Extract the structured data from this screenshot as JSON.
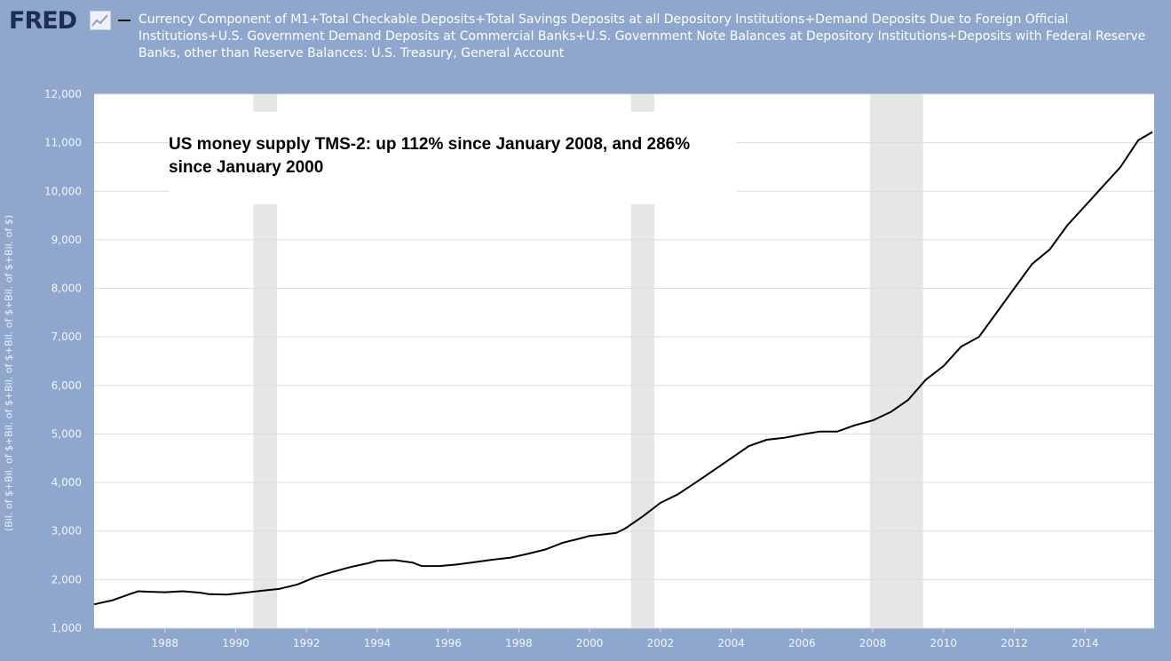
{
  "header": {
    "logo_text": "FRED",
    "series_title": "Currency Component of M1+Total Checkable Deposits+Total Savings Deposits at all Depository Institutions+Demand Deposits Due to Foreign Official Institutions+U.S. Government Demand Deposits at Commercial Banks+U.S. Government Note Balances at Depository Institutions+Deposits with Federal Reserve Banks, other than Reserve Balances: U.S. Treasury, General Account"
  },
  "annotation": "US money supply TMS-2: up 112% since January 2008, and 286% since January 2000",
  "colors": {
    "background": "#8fa7cc",
    "plot": "#ffffff",
    "line": "#000000",
    "recession": "#e6e6e6"
  },
  "chart_data": {
    "type": "line",
    "title": "",
    "ylabel": "(Bil. of $+Bil. of $+Bil. of $+Bil. of $+Bil. of $+Bil. of $+Bil. of $)",
    "xlabel": "",
    "xlim": [
      1986.0,
      2015.95
    ],
    "ylim": [
      1000,
      12000
    ],
    "x_ticks": [
      "1988",
      "1990",
      "1992",
      "1994",
      "1996",
      "1998",
      "2000",
      "2002",
      "2004",
      "2006",
      "2008",
      "2010",
      "2012",
      "2014"
    ],
    "y_ticks": [
      "1,000",
      "2,000",
      "3,000",
      "4,000",
      "5,000",
      "6,000",
      "7,000",
      "8,000",
      "9,000",
      "10,000",
      "11,000",
      "12,000"
    ],
    "recessions": [
      [
        1990.5,
        1991.17
      ],
      [
        2001.17,
        2001.83
      ],
      [
        2007.92,
        2009.42
      ]
    ],
    "grid": true,
    "series": [
      {
        "name": "",
        "x": [
          1986.0,
          1986.5,
          1987.0,
          1987.25,
          1987.5,
          1988.0,
          1988.5,
          1989.0,
          1989.25,
          1989.75,
          1990.25,
          1990.75,
          1991.25,
          1991.75,
          1992.25,
          1992.75,
          1993.25,
          1993.75,
          1994.0,
          1994.5,
          1995.0,
          1995.25,
          1995.75,
          1996.25,
          1996.75,
          1997.25,
          1997.75,
          1998.25,
          1998.75,
          1999.25,
          1999.75,
          2000.0,
          2000.5,
          2000.75,
          2001.0,
          2001.5,
          2002.0,
          2002.5,
          2003.0,
          2003.5,
          2004.0,
          2004.5,
          2005.0,
          2005.5,
          2006.0,
          2006.5,
          2007.0,
          2007.5,
          2008.0,
          2008.5,
          2009.0,
          2009.5,
          2010.0,
          2010.5,
          2011.0,
          2011.5,
          2012.0,
          2012.5,
          2013.0,
          2013.5,
          2014.0,
          2014.5,
          2015.0,
          2015.5,
          2015.9
        ],
        "values": [
          1490,
          1570,
          1700,
          1760,
          1750,
          1740,
          1760,
          1730,
          1700,
          1690,
          1730,
          1770,
          1810,
          1900,
          2050,
          2160,
          2260,
          2340,
          2390,
          2400,
          2350,
          2280,
          2280,
          2310,
          2360,
          2410,
          2450,
          2530,
          2620,
          2760,
          2850,
          2900,
          2940,
          2960,
          3050,
          3300,
          3580,
          3760,
          4000,
          4250,
          4500,
          4750,
          4880,
          4920,
          4990,
          5050,
          5050,
          5180,
          5280,
          5450,
          5700,
          6120,
          6400,
          6800,
          7000,
          7500,
          8000,
          8500,
          8800,
          9300,
          9700,
          10100,
          10500,
          11050,
          11220
        ]
      }
    ]
  }
}
